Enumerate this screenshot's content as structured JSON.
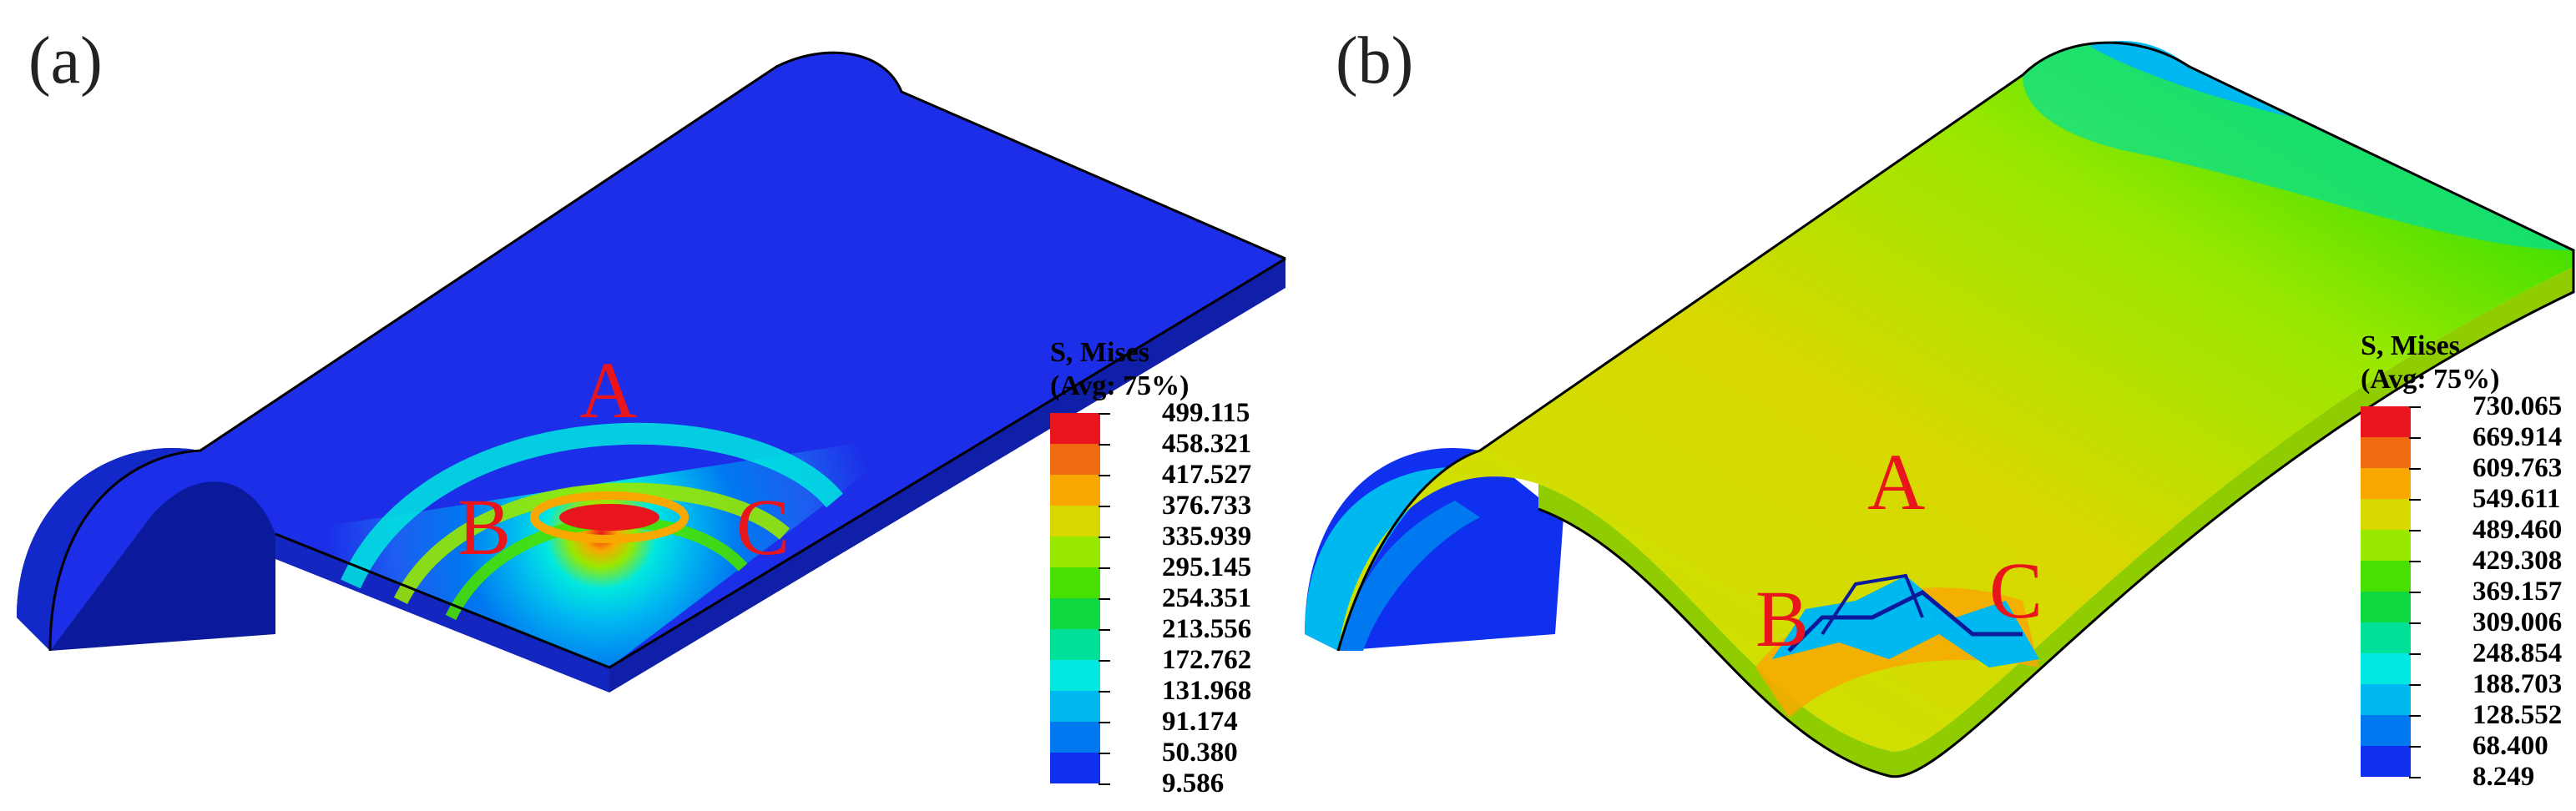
{
  "panels": [
    {
      "label": "(a)",
      "points": {
        "a": "A",
        "b": "B",
        "c": "C"
      },
      "legend": {
        "title_line1": "S, Mises",
        "title_line2": "(Avg: 75%)",
        "values": [
          "499.115",
          "458.321",
          "417.527",
          "376.733",
          "335.939",
          "295.145",
          "254.351",
          "213.556",
          "172.762",
          "131.968",
          "91.174",
          "50.380",
          "9.586"
        ],
        "colors": [
          "#e8161c",
          "#f06a10",
          "#f8a800",
          "#d8d800",
          "#98e800",
          "#48e000",
          "#10d840",
          "#00e098",
          "#00e8e0",
          "#00b8f0",
          "#0078f0",
          "#1030f0"
        ]
      }
    },
    {
      "label": "(b)",
      "points": {
        "a": "A",
        "b": "B",
        "c": "C"
      },
      "legend": {
        "title_line1": "S, Mises",
        "title_line2": "(Avg: 75%)",
        "values": [
          "730.065",
          "669.914",
          "609.763",
          "549.611",
          "489.460",
          "429.308",
          "369.157",
          "309.006",
          "248.854",
          "188.703",
          "128.552",
          "68.400",
          "8.249"
        ],
        "colors": [
          "#e8161c",
          "#f06a10",
          "#f8a800",
          "#d8d800",
          "#98e800",
          "#48e000",
          "#10d840",
          "#00e098",
          "#00e8e0",
          "#00b8f0",
          "#0078f0",
          "#1030f0"
        ]
      }
    }
  ]
}
